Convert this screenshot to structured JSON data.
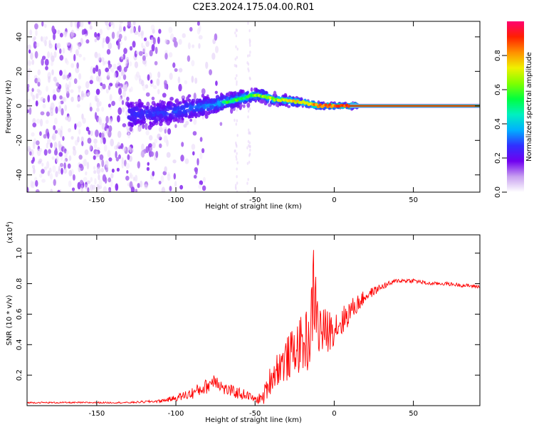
{
  "title": "C2E3.2024.175.04.00.R01",
  "chart_data": [
    {
      "type": "heatmap",
      "xlabel": "Height of straight line (km)",
      "ylabel": "Frequency (Hz)",
      "xlim": [
        -194,
        92
      ],
      "ylim": [
        -50,
        49
      ],
      "xticks": [
        -150,
        -100,
        -50,
        0,
        50
      ],
      "yticks": [
        -40,
        -20,
        0,
        20,
        40
      ],
      "ridge": {
        "x": [
          -125,
          -110,
          -100,
          -90,
          -80,
          -70,
          -60,
          -52,
          -45,
          -40,
          -30,
          -20,
          -10,
          0,
          10,
          20,
          92
        ],
        "freq": [
          -5,
          -4,
          -3,
          -1,
          0,
          2,
          4,
          6,
          6,
          4,
          3,
          2,
          0,
          0,
          0,
          0,
          0
        ]
      },
      "colorbar": {
        "label": "Normalized spectral amplitude",
        "range": [
          0,
          1
        ],
        "ticks": [
          0.0,
          0.2,
          0.4,
          0.6,
          0.8
        ],
        "tick_labels": [
          "0.0",
          "0.2",
          "0.4",
          "0.6",
          "0.8"
        ],
        "colormap": [
          "#ffffff",
          "#c8a0f0",
          "#7000f0",
          "#3030ff",
          "#00b0ff",
          "#00f0c0",
          "#00ff40",
          "#80ff00",
          "#f0f000",
          "#ff9000",
          "#ff2000",
          "#ff0070"
        ]
      }
    },
    {
      "type": "line",
      "xlabel": "Height of straight line (km)",
      "ylabel": "SNR (10 * v/v)",
      "y_multiplier_label": "(x10",
      "y_multiplier_exp": "4",
      "y_multiplier_close": ")",
      "xlim": [
        -194,
        92
      ],
      "ylim": [
        0,
        1.12
      ],
      "xticks": [
        -150,
        -100,
        -50,
        0,
        50
      ],
      "yticks": [
        0.2,
        0.4,
        0.6,
        0.8,
        1.0
      ],
      "series": [
        {
          "color": "#ff0000",
          "x": [
            -194,
            -160,
            -130,
            -110,
            -100,
            -90,
            -80,
            -75,
            -70,
            -60,
            -55,
            -50,
            -45,
            -40,
            -35,
            -30,
            -25,
            -20,
            -15,
            -13,
            -10,
            -5,
            0,
            5,
            10,
            15,
            20,
            30,
            40,
            50,
            60,
            70,
            80,
            92
          ],
          "y": [
            0.02,
            0.02,
            0.02,
            0.03,
            0.05,
            0.08,
            0.13,
            0.18,
            0.11,
            0.08,
            0.07,
            0.04,
            0.05,
            0.18,
            0.26,
            0.3,
            0.37,
            0.4,
            0.45,
            0.78,
            0.5,
            0.48,
            0.52,
            0.55,
            0.62,
            0.67,
            0.72,
            0.78,
            0.82,
            0.82,
            0.8,
            0.8,
            0.79,
            0.78
          ],
          "noise": [
            0.005,
            0.005,
            0.005,
            0.01,
            0.02,
            0.04,
            0.05,
            0.06,
            0.04,
            0.04,
            0.03,
            0.02,
            0.05,
            0.1,
            0.12,
            0.15,
            0.15,
            0.2,
            0.22,
            0.3,
            0.2,
            0.15,
            0.12,
            0.1,
            0.08,
            0.06,
            0.04,
            0.02,
            0.015,
            0.015,
            0.012,
            0.012,
            0.012,
            0.012
          ]
        }
      ]
    }
  ]
}
